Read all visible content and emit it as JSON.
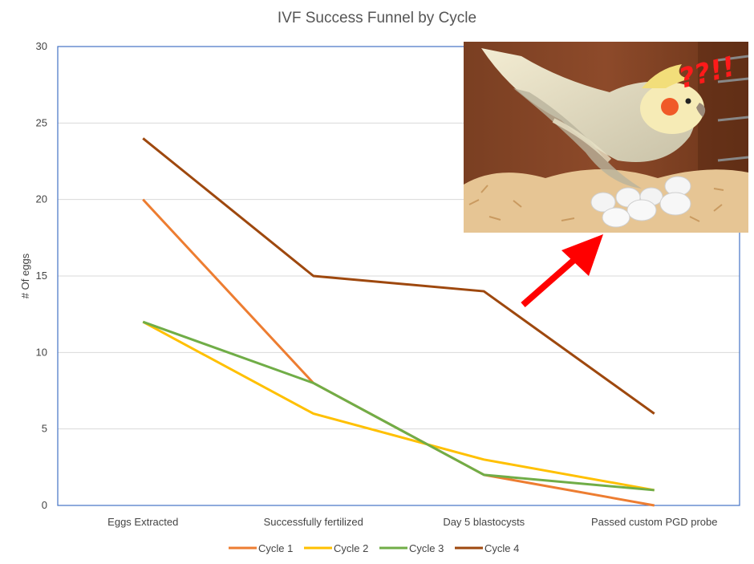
{
  "chart_data": {
    "type": "line",
    "title": "IVF Success Funnel by Cycle",
    "xlabel": "",
    "ylabel": "# Of eggs",
    "categories": [
      "Eggs Extracted",
      "Successfully fertilized",
      "Day 5 blastocysts",
      "Passed custom PGD probe"
    ],
    "ylim": [
      0,
      30
    ],
    "yticks": [
      0,
      5,
      10,
      15,
      20,
      25,
      30
    ],
    "grid": true,
    "legend": "bottom",
    "series": [
      {
        "name": "Cycle 1",
        "color": "#ed7d31",
        "values": [
          20,
          8,
          2,
          0
        ]
      },
      {
        "name": "Cycle 2",
        "color": "#ffc000",
        "values": [
          12,
          6,
          3,
          1
        ]
      },
      {
        "name": "Cycle 3",
        "color": "#70ad47",
        "values": [
          12,
          8,
          2,
          1
        ]
      },
      {
        "name": "Cycle 4",
        "color": "#9e480e",
        "values": [
          24,
          15,
          14,
          6
        ]
      }
    ]
  },
  "overlay": {
    "photo_caption": "??!!",
    "photo_subject": "cockatiel sitting on a clutch of eggs in a wooden nest box",
    "arrow_color": "#ff0000"
  }
}
